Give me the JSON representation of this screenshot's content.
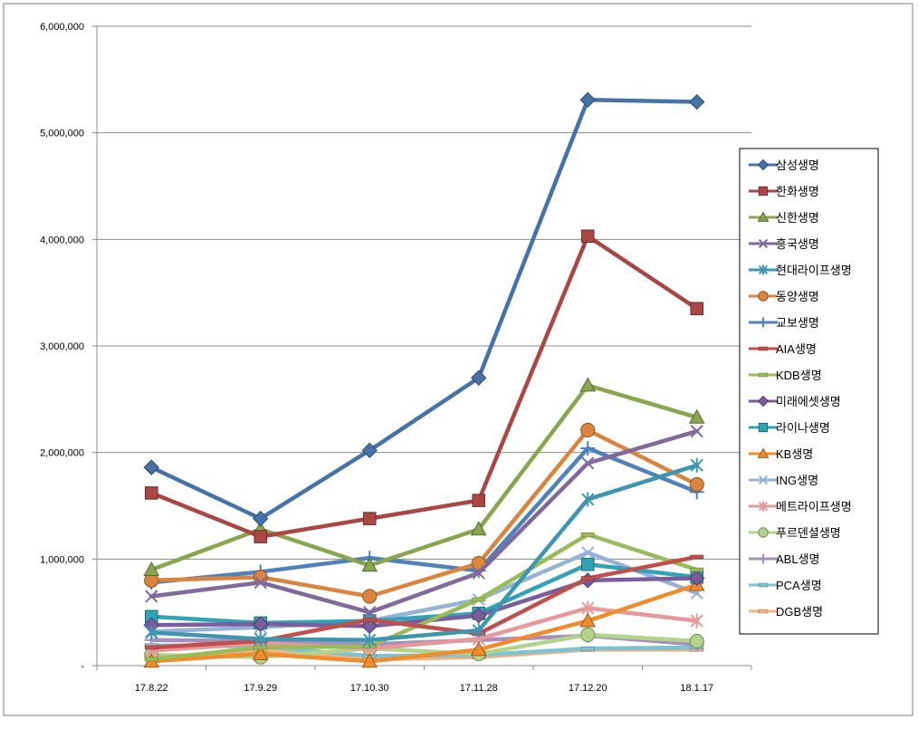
{
  "chart_data": {
    "type": "line",
    "title": "",
    "xlabel": "",
    "ylabel": "",
    "ylim": [
      0,
      6000000
    ],
    "yticks": [
      0,
      1000000,
      2000000,
      3000000,
      4000000,
      5000000,
      6000000
    ],
    "ytick_labels": [
      "-",
      "1,000,000",
      "2,000,000",
      "3,000,000",
      "4,000,000",
      "5,000,000",
      "6,000,000"
    ],
    "grid": true,
    "legend_position": "right",
    "categories": [
      "17.8.22",
      "17.9.29",
      "17.10.30",
      "17.11.28",
      "17.12.20",
      "18.1.17"
    ],
    "series": [
      {
        "name": "삼성생명",
        "color": "#4672A8",
        "marker": "diamond",
        "values": [
          1860000,
          1380000,
          2020000,
          2700000,
          5310000,
          5290000
        ]
      },
      {
        "name": "한화생명",
        "color": "#AA4643",
        "marker": "square",
        "values": [
          1620000,
          1210000,
          1380000,
          1550000,
          4030000,
          3350000
        ]
      },
      {
        "name": "신한생명",
        "color": "#89A54E",
        "marker": "triangle",
        "values": [
          900000,
          1280000,
          940000,
          1280000,
          2630000,
          2330000
        ]
      },
      {
        "name": "흥국생명",
        "color": "#80699B",
        "marker": "x",
        "values": [
          650000,
          780000,
          500000,
          870000,
          1900000,
          2200000
        ]
      },
      {
        "name": "현대라이프생명",
        "color": "#3D96AE",
        "marker": "star",
        "values": [
          310000,
          250000,
          240000,
          330000,
          1560000,
          1880000
        ]
      },
      {
        "name": "동양생명",
        "color": "#DB843D",
        "marker": "circle",
        "values": [
          800000,
          830000,
          650000,
          960000,
          2210000,
          1700000
        ]
      },
      {
        "name": "교보생명",
        "color": "#4F81BD",
        "marker": "plus",
        "values": [
          780000,
          880000,
          1010000,
          890000,
          2040000,
          1630000
        ]
      },
      {
        "name": "AIA생명",
        "color": "#C0504D",
        "marker": "dash",
        "values": [
          170000,
          230000,
          430000,
          300000,
          820000,
          1020000
        ]
      },
      {
        "name": "KDB생명",
        "color": "#9BBB59",
        "marker": "dash",
        "values": [
          60000,
          170000,
          180000,
          620000,
          1230000,
          900000
        ]
      },
      {
        "name": "미래에셋생명",
        "color": "#7B5C9E",
        "marker": "diamond",
        "values": [
          380000,
          390000,
          370000,
          470000,
          800000,
          820000
        ]
      },
      {
        "name": "라이나생명",
        "color": "#31A3B7",
        "marker": "square",
        "values": [
          460000,
          400000,
          420000,
          490000,
          950000,
          830000
        ]
      },
      {
        "name": "KB생명",
        "color": "#F08C2C",
        "marker": "triangle",
        "values": [
          40000,
          110000,
          40000,
          150000,
          420000,
          760000
        ]
      },
      {
        "name": "ING생명",
        "color": "#95B3D7",
        "marker": "x",
        "values": [
          320000,
          360000,
          420000,
          620000,
          1060000,
          680000
        ]
      },
      {
        "name": "메트라이프생명",
        "color": "#E6989A",
        "marker": "star",
        "values": [
          140000,
          210000,
          160000,
          250000,
          540000,
          420000
        ]
      },
      {
        "name": "푸르덴셜생명",
        "color": "#B4D38A",
        "marker": "circle",
        "values": [
          100000,
          80000,
          160000,
          110000,
          290000,
          230000
        ]
      },
      {
        "name": "ABL생명",
        "color": "#A590BE",
        "marker": "plus",
        "values": [
          240000,
          230000,
          200000,
          240000,
          280000,
          200000
        ]
      },
      {
        "name": "PCA생명",
        "color": "#7DC3D4",
        "marker": "dash",
        "values": [
          190000,
          180000,
          90000,
          100000,
          160000,
          170000
        ]
      },
      {
        "name": "DGB생명",
        "color": "#F5B17E",
        "marker": "dash",
        "values": [
          70000,
          140000,
          60000,
          80000,
          150000,
          150000
        ]
      }
    ]
  }
}
